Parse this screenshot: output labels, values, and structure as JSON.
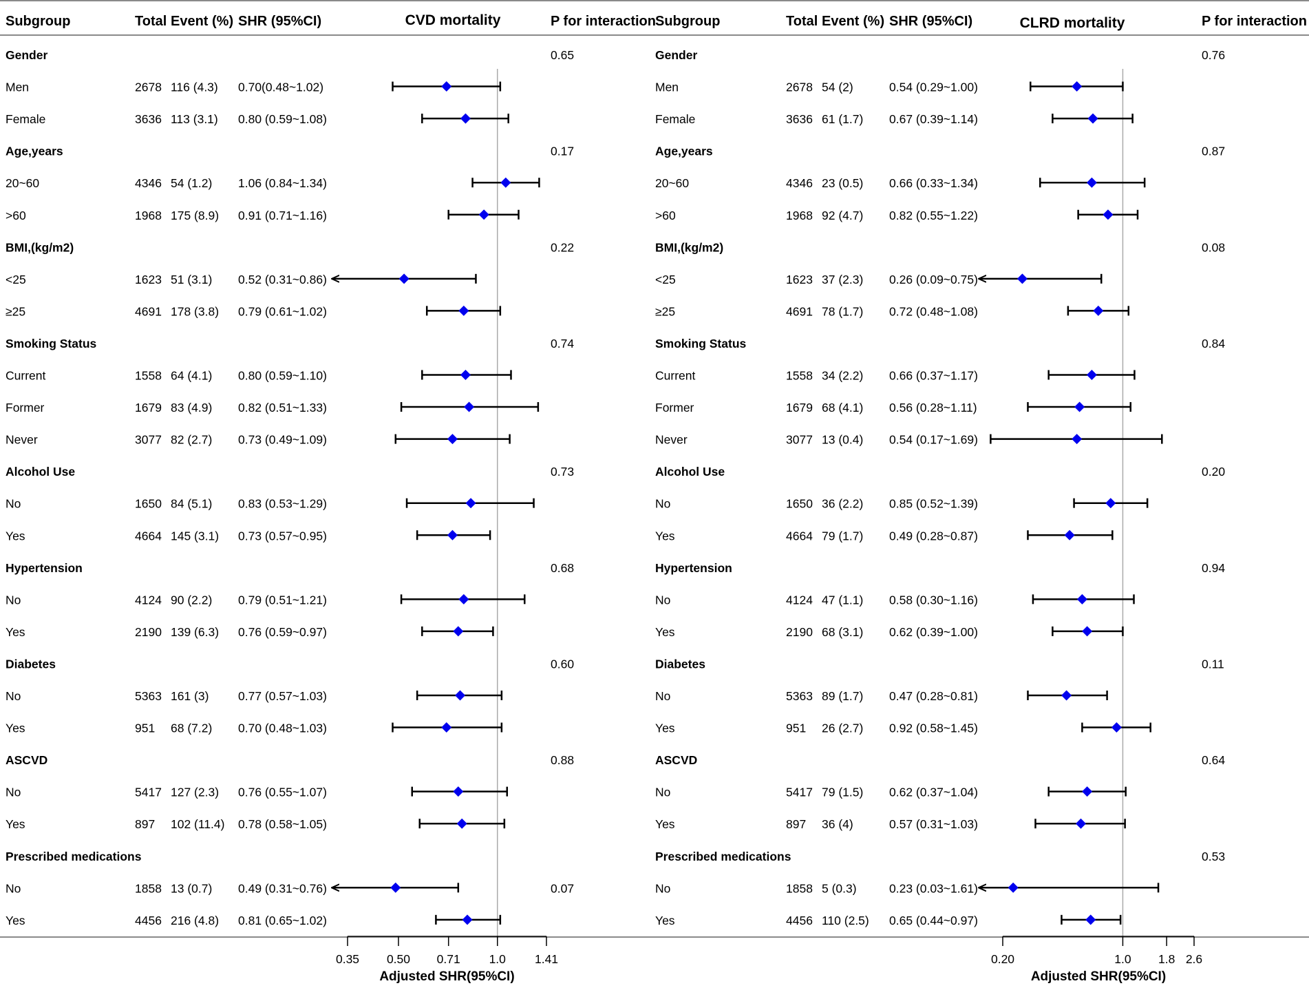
{
  "colors": {
    "marker": "#0000ee",
    "ci_line": "#000000",
    "ref_line": "#aaaaaa",
    "rule": "#8a8a8a"
  },
  "headers": {
    "subgroup": "Subgroup",
    "total": "Total",
    "event": "Event (%)",
    "shr": "SHR (95%CI)",
    "p_interaction": "P for interaction"
  },
  "chart_data": [
    {
      "type": "forest",
      "title": "CVD mortality",
      "xlabel": "Adjusted SHR(95%CI)",
      "xscale": "log",
      "xlim": [
        0.35,
        1.41
      ],
      "reference_value": 1.0,
      "ticks": [
        0.35,
        0.5,
        0.71,
        1.0,
        1.41
      ],
      "tick_labels": [
        "0.35",
        "0.50",
        "0.71",
        "1.0",
        "1.41"
      ],
      "rows": [
        {
          "kind": "group",
          "label": "Gender",
          "p": "0.65"
        },
        {
          "kind": "item",
          "label": "Men",
          "total": "2678",
          "event": "116 (4.3)",
          "shr": "0.70(0.48~1.02)",
          "est": 0.7,
          "lo": 0.48,
          "hi": 1.02
        },
        {
          "kind": "item",
          "label": "Female",
          "total": "3636",
          "event": "113 (3.1)",
          "shr": "0.80 (0.59~1.08)",
          "est": 0.8,
          "lo": 0.59,
          "hi": 1.08
        },
        {
          "kind": "group",
          "label": "Age,years",
          "p": "0.17"
        },
        {
          "kind": "item",
          "label": "20~60",
          "total": "4346",
          "event": "54 (1.2)",
          "shr": "1.06 (0.84~1.34)",
          "est": 1.06,
          "lo": 0.84,
          "hi": 1.34
        },
        {
          "kind": "item",
          "label": ">60",
          "total": "1968",
          "event": "175 (8.9)",
          "shr": "0.91 (0.71~1.16)",
          "est": 0.91,
          "lo": 0.71,
          "hi": 1.16
        },
        {
          "kind": "group",
          "label": "BMI,(kg/m2)",
          "p": "0.22"
        },
        {
          "kind": "item",
          "label": "<25",
          "total": "1623",
          "event": "51 (3.1)",
          "shr": "0.52 (0.31~0.86)",
          "est": 0.52,
          "lo": 0.31,
          "hi": 0.86
        },
        {
          "kind": "item",
          "label": "≥25",
          "total": "4691",
          "event": "178 (3.8)",
          "shr": "0.79 (0.61~1.02)",
          "est": 0.79,
          "lo": 0.61,
          "hi": 1.02
        },
        {
          "kind": "group",
          "label": "Smoking Status",
          "p": "0.74"
        },
        {
          "kind": "item",
          "label": "Current",
          "total": "1558",
          "event": "64 (4.1)",
          "shr": "0.80 (0.59~1.10)",
          "est": 0.8,
          "lo": 0.59,
          "hi": 1.1
        },
        {
          "kind": "item",
          "label": "Former",
          "total": "1679",
          "event": "83 (4.9)",
          "shr": "0.82 (0.51~1.33)",
          "est": 0.82,
          "lo": 0.51,
          "hi": 1.33
        },
        {
          "kind": "item",
          "label": "Never",
          "total": "3077",
          "event": "82 (2.7)",
          "shr": "0.73 (0.49~1.09)",
          "est": 0.73,
          "lo": 0.49,
          "hi": 1.09
        },
        {
          "kind": "group",
          "label": "Alcohol Use",
          "p": "0.73"
        },
        {
          "kind": "item",
          "label": "No",
          "total": "1650",
          "event": "84 (5.1)",
          "shr": "0.83 (0.53~1.29)",
          "est": 0.83,
          "lo": 0.53,
          "hi": 1.29
        },
        {
          "kind": "item",
          "label": "Yes",
          "total": "4664",
          "event": "145 (3.1)",
          "shr": "0.73 (0.57~0.95)",
          "est": 0.73,
          "lo": 0.57,
          "hi": 0.95
        },
        {
          "kind": "group",
          "label": "Hypertension",
          "p": "0.68"
        },
        {
          "kind": "item",
          "label": "No",
          "total": "4124",
          "event": "90 (2.2)",
          "shr": "0.79 (0.51~1.21)",
          "est": 0.79,
          "lo": 0.51,
          "hi": 1.21
        },
        {
          "kind": "item",
          "label": "Yes",
          "total": "2190",
          "event": "139 (6.3)",
          "shr": "0.76 (0.59~0.97)",
          "est": 0.76,
          "lo": 0.59,
          "hi": 0.97
        },
        {
          "kind": "group",
          "label": "Diabetes",
          "p": "0.60"
        },
        {
          "kind": "item",
          "label": "No",
          "total": "5363",
          "event": "161 (3)",
          "shr": "0.77 (0.57~1.03)",
          "est": 0.77,
          "lo": 0.57,
          "hi": 1.03
        },
        {
          "kind": "item",
          "label": "Yes",
          "total": "951",
          "event": "68 (7.2)",
          "shr": "0.70 (0.48~1.03)",
          "est": 0.7,
          "lo": 0.48,
          "hi": 1.03
        },
        {
          "kind": "group",
          "label": "ASCVD",
          "p": "0.88"
        },
        {
          "kind": "item",
          "label": "No",
          "total": "5417",
          "event": "127 (2.3)",
          "shr": "0.76 (0.55~1.07)",
          "est": 0.76,
          "lo": 0.55,
          "hi": 1.07
        },
        {
          "kind": "item",
          "label": "Yes",
          "total": "897",
          "event": "102 (11.4)",
          "shr": "0.78 (0.58~1.05)",
          "est": 0.78,
          "lo": 0.58,
          "hi": 1.05
        },
        {
          "kind": "group",
          "label": "Prescribed medications",
          "p": ""
        },
        {
          "kind": "item",
          "label": "No",
          "total": "1858",
          "event": "13 (0.7)",
          "shr": "0.49 (0.31~0.76)",
          "est": 0.49,
          "lo": 0.31,
          "hi": 0.76,
          "p": "0.07"
        },
        {
          "kind": "item",
          "label": "Yes",
          "total": "4456",
          "event": "216 (4.8)",
          "shr": "0.81 (0.65~1.02)",
          "est": 0.81,
          "lo": 0.65,
          "hi": 1.02
        }
      ]
    },
    {
      "type": "forest",
      "title": "CLRD mortality",
      "xlabel": "Adjusted SHR(95%CI)",
      "xscale": "log",
      "xlim": [
        0.2,
        2.6
      ],
      "reference_value": 1.0,
      "ticks": [
        0.2,
        1.0,
        1.8,
        2.6
      ],
      "tick_labels": [
        "0.20",
        "1.0",
        "1.8",
        "2.6"
      ],
      "rows": [
        {
          "kind": "group",
          "label": "Gender",
          "p": "0.76"
        },
        {
          "kind": "item",
          "label": "Men",
          "total": "2678",
          "event": "54 (2)",
          "shr": "0.54 (0.29~1.00)",
          "est": 0.54,
          "lo": 0.29,
          "hi": 1.0
        },
        {
          "kind": "item",
          "label": "Female",
          "total": "3636",
          "event": "61 (1.7)",
          "shr": "0.67 (0.39~1.14)",
          "est": 0.67,
          "lo": 0.39,
          "hi": 1.14
        },
        {
          "kind": "group",
          "label": "Age,years",
          "p": "0.87"
        },
        {
          "kind": "item",
          "label": "20~60",
          "total": "4346",
          "event": "23 (0.5)",
          "shr": "0.66 (0.33~1.34)",
          "est": 0.66,
          "lo": 0.33,
          "hi": 1.34
        },
        {
          "kind": "item",
          "label": ">60",
          "total": "1968",
          "event": "92 (4.7)",
          "shr": "0.82 (0.55~1.22)",
          "est": 0.82,
          "lo": 0.55,
          "hi": 1.22
        },
        {
          "kind": "group",
          "label": "BMI,(kg/m2)",
          "p": "0.08"
        },
        {
          "kind": "item",
          "label": "<25",
          "total": "1623",
          "event": "37 (2.3)",
          "shr": "0.26 (0.09~0.75)",
          "est": 0.26,
          "lo": 0.09,
          "hi": 0.75
        },
        {
          "kind": "item",
          "label": "≥25",
          "total": "4691",
          "event": "78 (1.7)",
          "shr": "0.72 (0.48~1.08)",
          "est": 0.72,
          "lo": 0.48,
          "hi": 1.08
        },
        {
          "kind": "group",
          "label": "Smoking Status",
          "p": "0.84"
        },
        {
          "kind": "item",
          "label": "Current",
          "total": "1558",
          "event": "34 (2.2)",
          "shr": "0.66 (0.37~1.17)",
          "est": 0.66,
          "lo": 0.37,
          "hi": 1.17
        },
        {
          "kind": "item",
          "label": "Former",
          "total": "1679",
          "event": "68 (4.1)",
          "shr": "0.56 (0.28~1.11)",
          "est": 0.56,
          "lo": 0.28,
          "hi": 1.11
        },
        {
          "kind": "item",
          "label": "Never",
          "total": "3077",
          "event": "13 (0.4)",
          "shr": "0.54 (0.17~1.69)",
          "est": 0.54,
          "lo": 0.17,
          "hi": 1.69
        },
        {
          "kind": "group",
          "label": "Alcohol Use",
          "p": "0.20"
        },
        {
          "kind": "item",
          "label": "No",
          "total": "1650",
          "event": "36 (2.2)",
          "shr": "0.85 (0.52~1.39)",
          "est": 0.85,
          "lo": 0.52,
          "hi": 1.39
        },
        {
          "kind": "item",
          "label": "Yes",
          "total": "4664",
          "event": "79 (1.7)",
          "shr": "0.49 (0.28~0.87)",
          "est": 0.49,
          "lo": 0.28,
          "hi": 0.87
        },
        {
          "kind": "group",
          "label": "Hypertension",
          "p": "0.94"
        },
        {
          "kind": "item",
          "label": "No",
          "total": "4124",
          "event": "47 (1.1)",
          "shr": "0.58 (0.30~1.16)",
          "est": 0.58,
          "lo": 0.3,
          "hi": 1.16
        },
        {
          "kind": "item",
          "label": "Yes",
          "total": "2190",
          "event": "68 (3.1)",
          "shr": "0.62 (0.39~1.00)",
          "est": 0.62,
          "lo": 0.39,
          "hi": 1.0
        },
        {
          "kind": "group",
          "label": "Diabetes",
          "p": "0.11"
        },
        {
          "kind": "item",
          "label": "No",
          "total": "5363",
          "event": "89 (1.7)",
          "shr": "0.47 (0.28~0.81)",
          "est": 0.47,
          "lo": 0.28,
          "hi": 0.81
        },
        {
          "kind": "item",
          "label": "Yes",
          "total": "951",
          "event": "26 (2.7)",
          "shr": "0.92 (0.58~1.45)",
          "est": 0.92,
          "lo": 0.58,
          "hi": 1.45
        },
        {
          "kind": "group",
          "label": "ASCVD",
          "p": "0.64"
        },
        {
          "kind": "item",
          "label": "No",
          "total": "5417",
          "event": "79 (1.5)",
          "shr": "0.62 (0.37~1.04)",
          "est": 0.62,
          "lo": 0.37,
          "hi": 1.04
        },
        {
          "kind": "item",
          "label": "Yes",
          "total": "897",
          "event": "36 (4)",
          "shr": "0.57 (0.31~1.03)",
          "est": 0.57,
          "lo": 0.31,
          "hi": 1.03
        },
        {
          "kind": "group",
          "label": "Prescribed medications",
          "p": "0.53"
        },
        {
          "kind": "item",
          "label": "No",
          "total": "1858",
          "event": "5 (0.3)",
          "shr": "0.23 (0.03~1.61)",
          "est": 0.23,
          "lo": 0.03,
          "hi": 1.61
        },
        {
          "kind": "item",
          "label": "Yes",
          "total": "4456",
          "event": "110 (2.5)",
          "shr": "0.65 (0.44~0.97)",
          "est": 0.65,
          "lo": 0.44,
          "hi": 0.97
        }
      ]
    }
  ]
}
